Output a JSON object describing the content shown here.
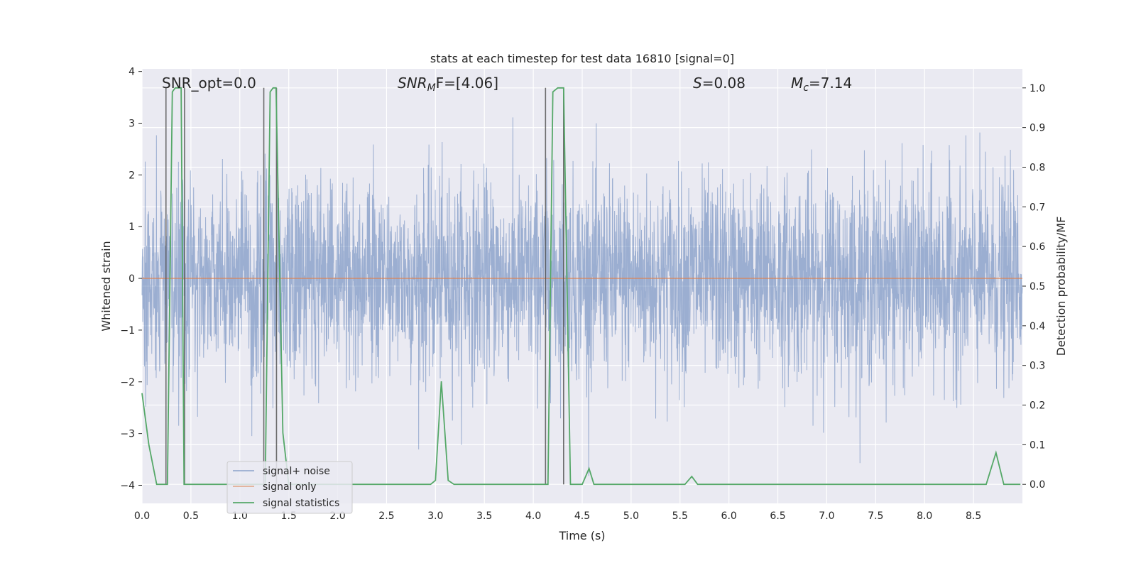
{
  "chart_data": {
    "type": "line",
    "title": "stats at each timestep for test data 16810 [signal=0]",
    "xlabel": "Time (s)",
    "ylabel_left": "Whitened strain",
    "ylabel_right": "Detection probability/MF",
    "xlim": [
      0.0,
      9.0
    ],
    "ylim_left": [
      -4.35,
      4.05
    ],
    "ylim_right": [
      -0.048,
      1.048
    ],
    "x_ticks": [
      "0.0",
      "0.5",
      "1.0",
      "1.5",
      "2.0",
      "2.5",
      "3.0",
      "3.5",
      "4.0",
      "4.5",
      "5.0",
      "5.5",
      "6.0",
      "6.5",
      "7.0",
      "7.5",
      "8.0",
      "8.5"
    ],
    "y_ticks_left": [
      "4",
      "3",
      "2",
      "1",
      "0",
      "−1",
      "−2",
      "−3",
      "−4"
    ],
    "y_ticks_right": [
      "1.0",
      "0.9",
      "0.8",
      "0.7",
      "0.6",
      "0.5",
      "0.4",
      "0.3",
      "0.2",
      "0.1",
      "0.0"
    ],
    "grid": true,
    "legend_position": "lower-left",
    "annotations": {
      "snr_opt": "SNR_opt=0.0",
      "snr_mf_label": "SNR",
      "snr_mf_sub": "M",
      "snr_mf_rest": "F=[4.06]",
      "s_label": "S",
      "s_value": "=0.08",
      "mc_label": "M",
      "mc_sub": "c",
      "mc_value": "=7.14"
    },
    "series": [
      {
        "name": "signal+ noise",
        "color": "#4c72b0",
        "amplitude_band": {
          "typical": 1.4,
          "max_peak": 3.7,
          "min_peak": -4.0
        }
      },
      {
        "name": "signal only",
        "color": "#dd8452",
        "value": 0.0
      },
      {
        "name": "signal statistics",
        "color": "#55a868",
        "x": [
          0.0,
          0.07,
          0.15,
          0.24,
          0.26,
          0.31,
          0.34,
          0.4,
          0.43,
          0.45,
          0.5,
          0.55,
          0.7,
          0.8,
          1.0,
          1.2,
          1.24,
          1.26,
          1.31,
          1.34,
          1.37,
          1.44,
          1.5,
          1.6,
          2.0,
          2.5,
          2.95,
          3.0,
          3.06,
          3.13,
          3.19,
          3.5,
          3.8,
          3.9,
          4.0,
          4.12,
          4.15,
          4.2,
          4.25,
          4.31,
          4.38,
          4.43,
          4.5,
          4.57,
          4.62,
          4.9,
          5.5,
          5.55,
          5.62,
          5.68,
          6.0,
          7.0,
          8.0,
          8.55,
          8.63,
          8.73,
          8.81,
          8.88,
          8.98
        ],
        "values": [
          0.23,
          0.1,
          0.0,
          0.0,
          0.0,
          0.99,
          1.0,
          1.0,
          0.0,
          0.0,
          0.0,
          0.0,
          0.0,
          0.0,
          0.0,
          0.0,
          0.0,
          0.0,
          0.99,
          1.0,
          1.0,
          0.13,
          0.0,
          0.0,
          0.0,
          0.0,
          0.0,
          0.01,
          0.26,
          0.01,
          0.0,
          0.0,
          0.0,
          0.0,
          0.0,
          0.0,
          0.0,
          0.99,
          1.0,
          1.0,
          0.0,
          0.0,
          0.0,
          0.04,
          0.0,
          0.0,
          0.0,
          0.0,
          0.02,
          0.0,
          0.0,
          0.0,
          0.0,
          0.0,
          0.0,
          0.08,
          0.0,
          0.0,
          0.0
        ]
      }
    ],
    "vertical_markers": [
      0.245,
      0.435,
      1.245,
      1.375,
      4.125,
      4.31
    ]
  },
  "colors": {
    "axes_bg": "#eaeaf2",
    "grid": "#ffffff",
    "text": "#262626",
    "marker": "#555555"
  }
}
